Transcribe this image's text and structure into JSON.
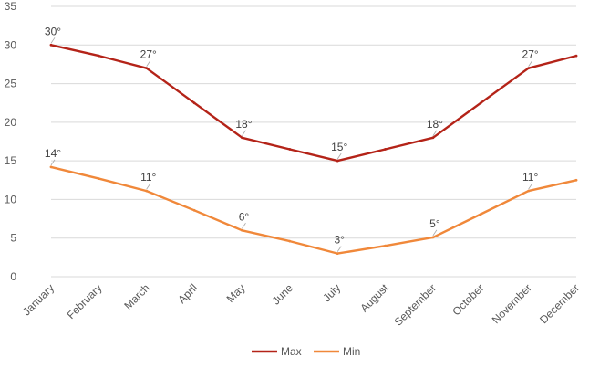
{
  "chart_data": {
    "type": "line",
    "title": "",
    "xlabel": "",
    "ylabel": "",
    "categories": [
      "January",
      "February",
      "March",
      "April",
      "May",
      "June",
      "July",
      "August",
      "September",
      "October",
      "November",
      "December"
    ],
    "ylim": [
      0,
      35
    ],
    "yticks": [
      0,
      5,
      10,
      15,
      20,
      25,
      30,
      35
    ],
    "grid": true,
    "legend": "bottom",
    "series": [
      {
        "name": "Max",
        "color": "#b42318",
        "values": [
          30,
          28.6,
          27,
          22.5,
          18,
          16.5,
          15,
          16.5,
          18,
          22.5,
          27,
          28.6
        ],
        "labels": [
          "30°",
          "",
          "27°",
          "",
          "18°",
          "",
          "15°",
          "",
          "18°",
          "",
          "27°",
          ""
        ]
      },
      {
        "name": "Min",
        "color": "#f0883a",
        "values": [
          14.2,
          12.7,
          11.1,
          8.6,
          6,
          4.6,
          3,
          4,
          5.1,
          8.1,
          11.1,
          12.5
        ],
        "labels": [
          "14°",
          "",
          "11°",
          "",
          "6°",
          "",
          "3°",
          "",
          "5°",
          "",
          "11°",
          ""
        ]
      }
    ]
  }
}
